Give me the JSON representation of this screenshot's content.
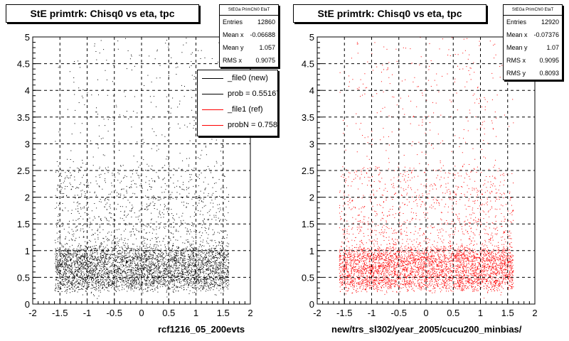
{
  "panels": [
    {
      "id": "left",
      "title": "StE primtrk: Chisq0 vs eta, tpc",
      "stats": {
        "header": "StEGa PrimChi0 EtaT",
        "rows": [
          {
            "label": "Entries",
            "value": "12860"
          },
          {
            "label": "Mean x",
            "value": "-0.06688"
          },
          {
            "label": "Mean y",
            "value": "1.057"
          },
          {
            "label": "RMS x",
            "value": "0.9075"
          }
        ]
      },
      "legend": [
        {
          "label": "_file0 (new)",
          "color": "#000000"
        },
        {
          "label": "prob = 0.551673",
          "color": "#000000"
        },
        {
          "label": "_file1 (ref)",
          "color": "#ff0000"
        },
        {
          "label": "probN = 0.758100",
          "color": "#ff0000"
        }
      ],
      "xlabel": "rcf1216_05_200evts",
      "point_color": "#000000"
    },
    {
      "id": "right",
      "title": "StE primtrk: Chisq0 vs eta, tpc",
      "stats": {
        "header": "StEGa PrimChi0 EtaT",
        "rows": [
          {
            "label": "Entries",
            "value": "12920"
          },
          {
            "label": "Mean x",
            "value": "-0.07376"
          },
          {
            "label": "Mean y",
            "value": "1.07"
          },
          {
            "label": "RMS x",
            "value": "0.9095"
          },
          {
            "label": "RMS y",
            "value": "0.8093"
          }
        ]
      },
      "xlabel": "new/trs_sl302/year_2005/cucu200_minbias/",
      "point_color": "#ff0000"
    }
  ],
  "chart_data": [
    {
      "type": "scatter",
      "title": "StE primtrk: Chisq0 vs eta, tpc",
      "xlabel": "rcf1216_05_200evts",
      "ylabel": "",
      "xlim": [
        -2,
        2
      ],
      "ylim": [
        0,
        5
      ],
      "x_ticks": [
        -2,
        -1.5,
        -1,
        -0.5,
        0,
        0.5,
        1,
        1.5,
        2
      ],
      "y_ticks": [
        0,
        0.5,
        1,
        1.5,
        2,
        2.5,
        3,
        3.5,
        4,
        4.5,
        5
      ],
      "grid": true,
      "entries": 12860,
      "mean_x": -0.06688,
      "mean_y": 1.057,
      "rms_x": 0.9075,
      "series": [
        {
          "name": "_file0 (new)",
          "color": "#000000"
        }
      ],
      "density": {
        "eta_range": [
          -1.6,
          1.6
        ],
        "core_y_range": [
          0.3,
          1.0
        ],
        "tail_y_max": 5
      }
    },
    {
      "type": "scatter",
      "title": "StE primtrk: Chisq0 vs eta, tpc",
      "xlabel": "new/trs_sl302/year_2005/cucu200_minbias/",
      "ylabel": "",
      "xlim": [
        -2,
        2
      ],
      "ylim": [
        0,
        5
      ],
      "x_ticks": [
        -2,
        -1.5,
        -1,
        -0.5,
        0,
        0.5,
        1,
        1.5,
        2
      ],
      "y_ticks": [
        0,
        0.5,
        1,
        1.5,
        2,
        2.5,
        3,
        3.5,
        4,
        4.5,
        5
      ],
      "grid": true,
      "entries": 12920,
      "mean_x": -0.07376,
      "mean_y": 1.07,
      "rms_x": 0.9095,
      "rms_y": 0.8093,
      "series": [
        {
          "name": "_file1 (ref)",
          "color": "#ff0000"
        }
      ],
      "density": {
        "eta_range": [
          -1.6,
          1.6
        ],
        "core_y_range": [
          0.3,
          1.0
        ],
        "tail_y_max": 5
      }
    }
  ]
}
